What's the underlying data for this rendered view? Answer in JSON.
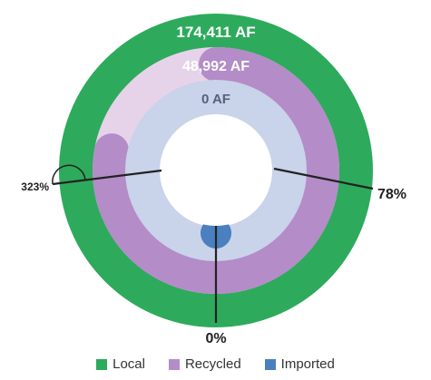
{
  "chart_data": {
    "type": "radial-bar",
    "rings": [
      {
        "name": "Local",
        "value_label": "174,411 AF",
        "percent_label": "323%",
        "percent": 323,
        "color": "#2eaa5c"
      },
      {
        "name": "Recycled",
        "value_label": "48,992 AF",
        "percent_label": "78%",
        "percent": 78,
        "color": "#b48cc8"
      },
      {
        "name": "Imported",
        "value_label": "0 AF",
        "percent_label": "0%",
        "percent": 0,
        "color": "#4a7fc0"
      }
    ],
    "colors": {
      "inner_ring_track": "#c9d3ea",
      "recycled_track": "#e6d3ea",
      "leader_line": "#222222"
    },
    "legend": [
      {
        "label": "Local",
        "color": "#2eaa5c"
      },
      {
        "label": "Recycled",
        "color": "#b48cc8"
      },
      {
        "label": "Imported",
        "color": "#4a7fc0"
      }
    ]
  }
}
